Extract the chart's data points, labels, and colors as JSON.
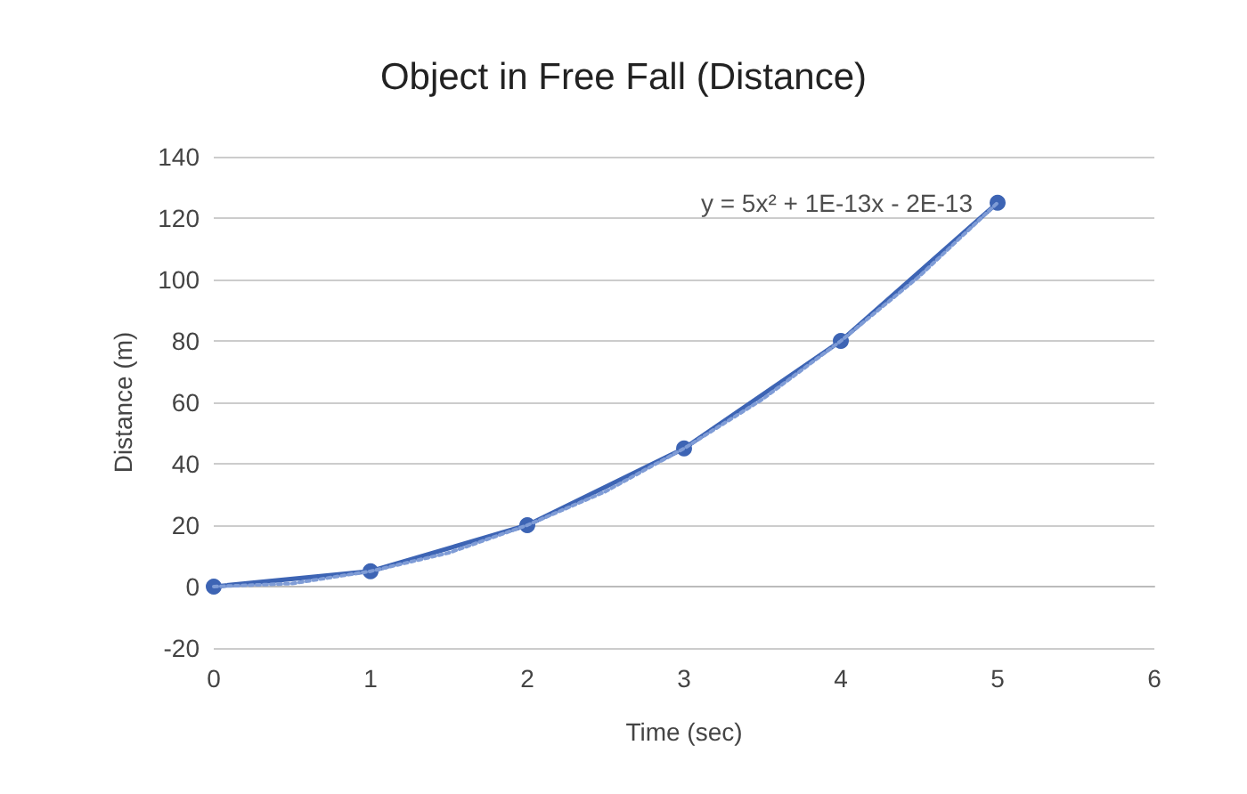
{
  "chart_data": {
    "type": "line",
    "title": "Object in Free Fall (Distance)",
    "xlabel": "Time (sec)",
    "ylabel": "Distance (m)",
    "xlim": [
      0,
      6
    ],
    "xticks": [
      0,
      1,
      2,
      3,
      4,
      5,
      6
    ],
    "ylim": [
      -20,
      140
    ],
    "yticks": [
      -20,
      0,
      20,
      40,
      60,
      80,
      100,
      120,
      140
    ],
    "grid": "y",
    "series": [
      {
        "color": "#3d64b4",
        "x": [
          0,
          1,
          2,
          3,
          4,
          5
        ],
        "values": [
          0,
          5,
          20,
          45,
          80,
          125
        ],
        "marker": "circle",
        "line_style": "solid"
      },
      {
        "type": "line",
        "color": "#7f9cd6",
        "x": [
          0,
          0.5,
          1,
          1.5,
          2,
          2.5,
          3,
          3.5,
          4,
          4.5,
          5
        ],
        "values": [
          0,
          1,
          5,
          11,
          20,
          31,
          45,
          61,
          80,
          101,
          125
        ],
        "marker": "none",
        "line_style": "dotted"
      }
    ],
    "annotations": [
      {
        "text": "y = 5x² + 1E-13x - 2E-13",
        "x": 5,
        "y": 125
      }
    ]
  }
}
